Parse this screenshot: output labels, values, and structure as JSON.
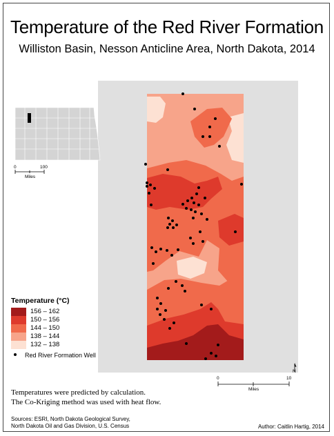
{
  "title": "Temperature of the Red River Formation",
  "subtitle": "Williston Basin, Nesson Anticline Area, North Dakota, 2014",
  "legend": {
    "title": "Temperature (°C)",
    "classes": [
      {
        "label": "156 – 162",
        "color": "#a31b1b"
      },
      {
        "label": "150 – 156",
        "color": "#de3a2c"
      },
      {
        "label": "144 – 150",
        "color": "#f06a4b"
      },
      {
        "label": "138 – 144",
        "color": "#f7a48a"
      },
      {
        "label": "132 – 138",
        "color": "#fde1d3"
      }
    ],
    "well_label": "Red River Formation Well"
  },
  "inset_scale": {
    "left": "0",
    "right": "100",
    "unit": "Miles"
  },
  "main_scale": {
    "left": "0",
    "right": "10",
    "unit": "Miles"
  },
  "north_label": "N",
  "notes": [
    "Temperatures were predicted by calculation.",
    "The Co-Kriging method was used with heat flow."
  ],
  "sources": [
    "Sources: ESRI, North Dakota Geological Survey,",
    "North Dakota Oil and Gas Division, U.S. Census"
  ],
  "author": "Author: Caitlin Hartig, 2014",
  "colors": {
    "background_gray": "#e0e0e0",
    "county_fill": "#d4d4d4",
    "county_line": "#ffffff",
    "well": "#000000"
  }
}
